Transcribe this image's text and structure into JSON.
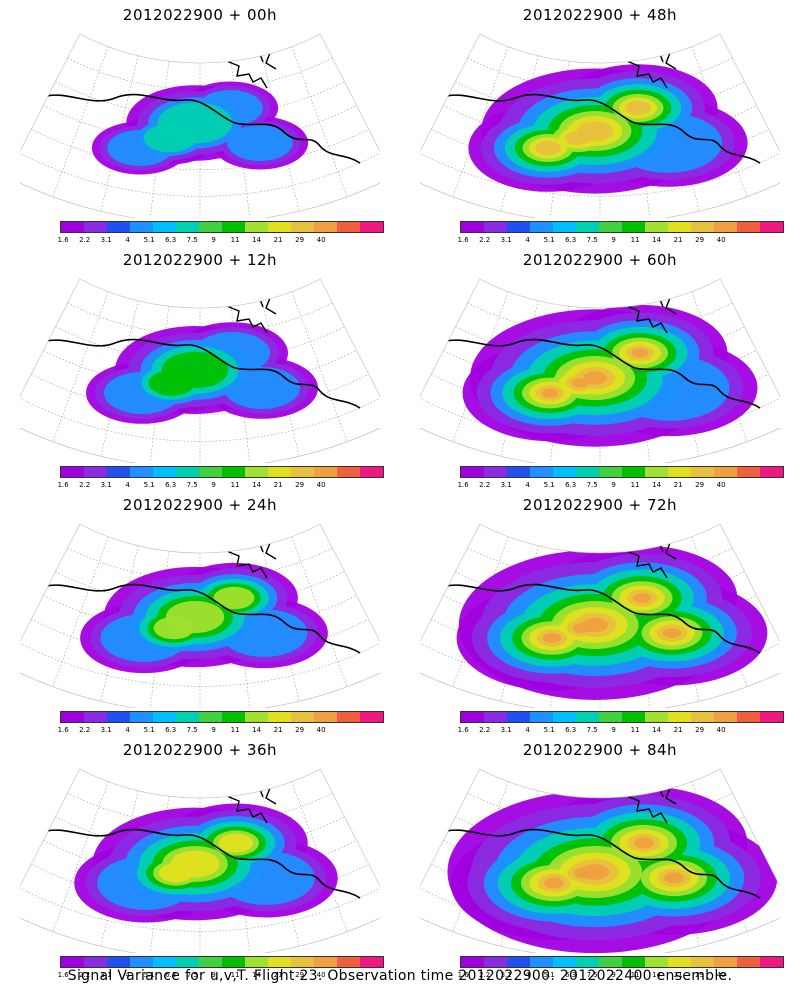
{
  "panels": [
    {
      "title": "2012022900  + 00h",
      "stage": 0
    },
    {
      "title": "2012022900  + 48h",
      "stage": 4
    },
    {
      "title": "2012022900  + 12h",
      "stage": 1
    },
    {
      "title": "2012022900  + 60h",
      "stage": 5
    },
    {
      "title": "2012022900  + 24h",
      "stage": 2
    },
    {
      "title": "2012022900  + 72h",
      "stage": 6
    },
    {
      "title": "2012022900  + 36h",
      "stage": 3
    },
    {
      "title": "2012022900  + 84h",
      "stage": 7
    }
  ],
  "legend": {
    "labels": [
      "1.6",
      "2.2",
      "3.1",
      "4",
      "5.1",
      "6.3",
      "7.5",
      "9",
      "11",
      "14",
      "21",
      "29",
      "40"
    ],
    "colors": [
      "#a000e0",
      "#8a2be2",
      "#2050f0",
      "#1e90ff",
      "#00bfff",
      "#00d0b0",
      "#40d040",
      "#00c000",
      "#a0e030",
      "#e0e020",
      "#e8c040",
      "#f0a040",
      "#f06040",
      "#f01880"
    ]
  },
  "footer": "Signal Variance for u,v,T. Flight 23. Observation time 2012022900. 2012022400 ensemble."
}
